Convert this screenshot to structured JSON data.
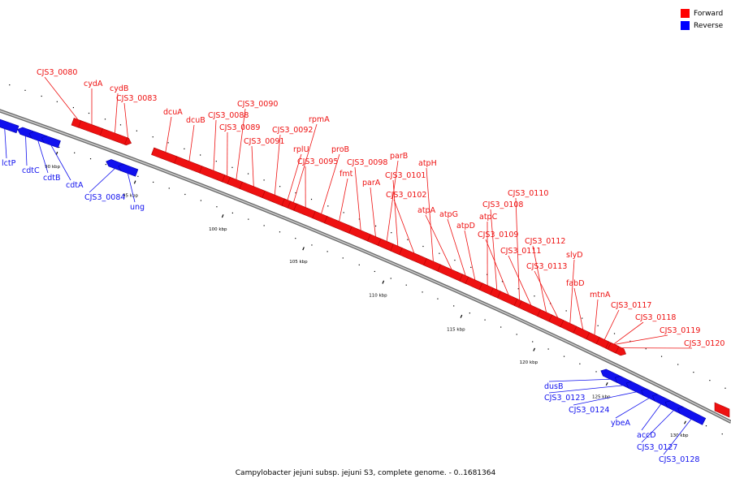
{
  "caption": "Campylobacter jejuni subsp. jejuni S3, complete genome. - 0..1681364",
  "legend": [
    {
      "label": "Forward",
      "color": "#ff0000"
    },
    {
      "label": "Reverse",
      "color": "#0000ff"
    }
  ],
  "colors": {
    "forward": "#ee1111",
    "reverse": "#1111ee",
    "backbone": "#888888"
  },
  "ticks": [
    "90 kbp",
    "95 kbp",
    "100 kbp",
    "105 kbp",
    "110 kbp",
    "115 kbp",
    "120 kbp",
    "125 kbp",
    "130 kbp"
  ],
  "genes": [
    {
      "name": "lctP",
      "strand": "reverse"
    },
    {
      "name": "cdtC",
      "strand": "reverse"
    },
    {
      "name": "cdtB",
      "strand": "reverse"
    },
    {
      "name": "cdtA",
      "strand": "reverse"
    },
    {
      "name": "CJS3_0080",
      "strand": "forward"
    },
    {
      "name": "cydA",
      "strand": "forward"
    },
    {
      "name": "cydB",
      "strand": "forward"
    },
    {
      "name": "CJS3_0083",
      "strand": "forward"
    },
    {
      "name": "CJS3_0084",
      "strand": "reverse"
    },
    {
      "name": "ung",
      "strand": "reverse"
    },
    {
      "name": "dcuA",
      "strand": "forward"
    },
    {
      "name": "dcuB",
      "strand": "forward"
    },
    {
      "name": "CJS3_0088",
      "strand": "forward"
    },
    {
      "name": "CJS3_0089",
      "strand": "forward"
    },
    {
      "name": "CJS3_0090",
      "strand": "forward"
    },
    {
      "name": "CJS3_0091",
      "strand": "forward"
    },
    {
      "name": "CJS3_0092",
      "strand": "forward"
    },
    {
      "name": "rplU",
      "strand": "forward"
    },
    {
      "name": "rpmA",
      "strand": "forward"
    },
    {
      "name": "CJS3_0095",
      "strand": "forward"
    },
    {
      "name": "proB",
      "strand": "forward"
    },
    {
      "name": "fmt",
      "strand": "forward"
    },
    {
      "name": "CJS3_0098",
      "strand": "forward"
    },
    {
      "name": "parA",
      "strand": "forward"
    },
    {
      "name": "parB",
      "strand": "forward"
    },
    {
      "name": "CJS3_0101",
      "strand": "forward"
    },
    {
      "name": "CJS3_0102",
      "strand": "forward"
    },
    {
      "name": "atpH",
      "strand": "forward"
    },
    {
      "name": "atpA",
      "strand": "forward"
    },
    {
      "name": "atpG",
      "strand": "forward"
    },
    {
      "name": "atpD",
      "strand": "forward"
    },
    {
      "name": "atpC",
      "strand": "forward"
    },
    {
      "name": "CJS3_0108",
      "strand": "forward"
    },
    {
      "name": "CJS3_0109",
      "strand": "forward"
    },
    {
      "name": "CJS3_0110",
      "strand": "forward"
    },
    {
      "name": "CJS3_0111",
      "strand": "forward"
    },
    {
      "name": "CJS3_0112",
      "strand": "forward"
    },
    {
      "name": "CJS3_0113",
      "strand": "forward"
    },
    {
      "name": "slyD",
      "strand": "forward"
    },
    {
      "name": "fabD",
      "strand": "forward"
    },
    {
      "name": "mtnA",
      "strand": "forward"
    },
    {
      "name": "CJS3_0117",
      "strand": "forward"
    },
    {
      "name": "CJS3_0118",
      "strand": "forward"
    },
    {
      "name": "CJS3_0119",
      "strand": "forward"
    },
    {
      "name": "CJS3_0120",
      "strand": "forward"
    },
    {
      "name": "dusB",
      "strand": "reverse"
    },
    {
      "name": "CJS3_0123",
      "strand": "reverse"
    },
    {
      "name": "CJS3_0124",
      "strand": "reverse"
    },
    {
      "name": "ybeA",
      "strand": "reverse"
    },
    {
      "name": "accD",
      "strand": "reverse"
    },
    {
      "name": "CJS3_0127",
      "strand": "reverse"
    },
    {
      "name": "CJS3_0128",
      "strand": "reverse"
    }
  ]
}
